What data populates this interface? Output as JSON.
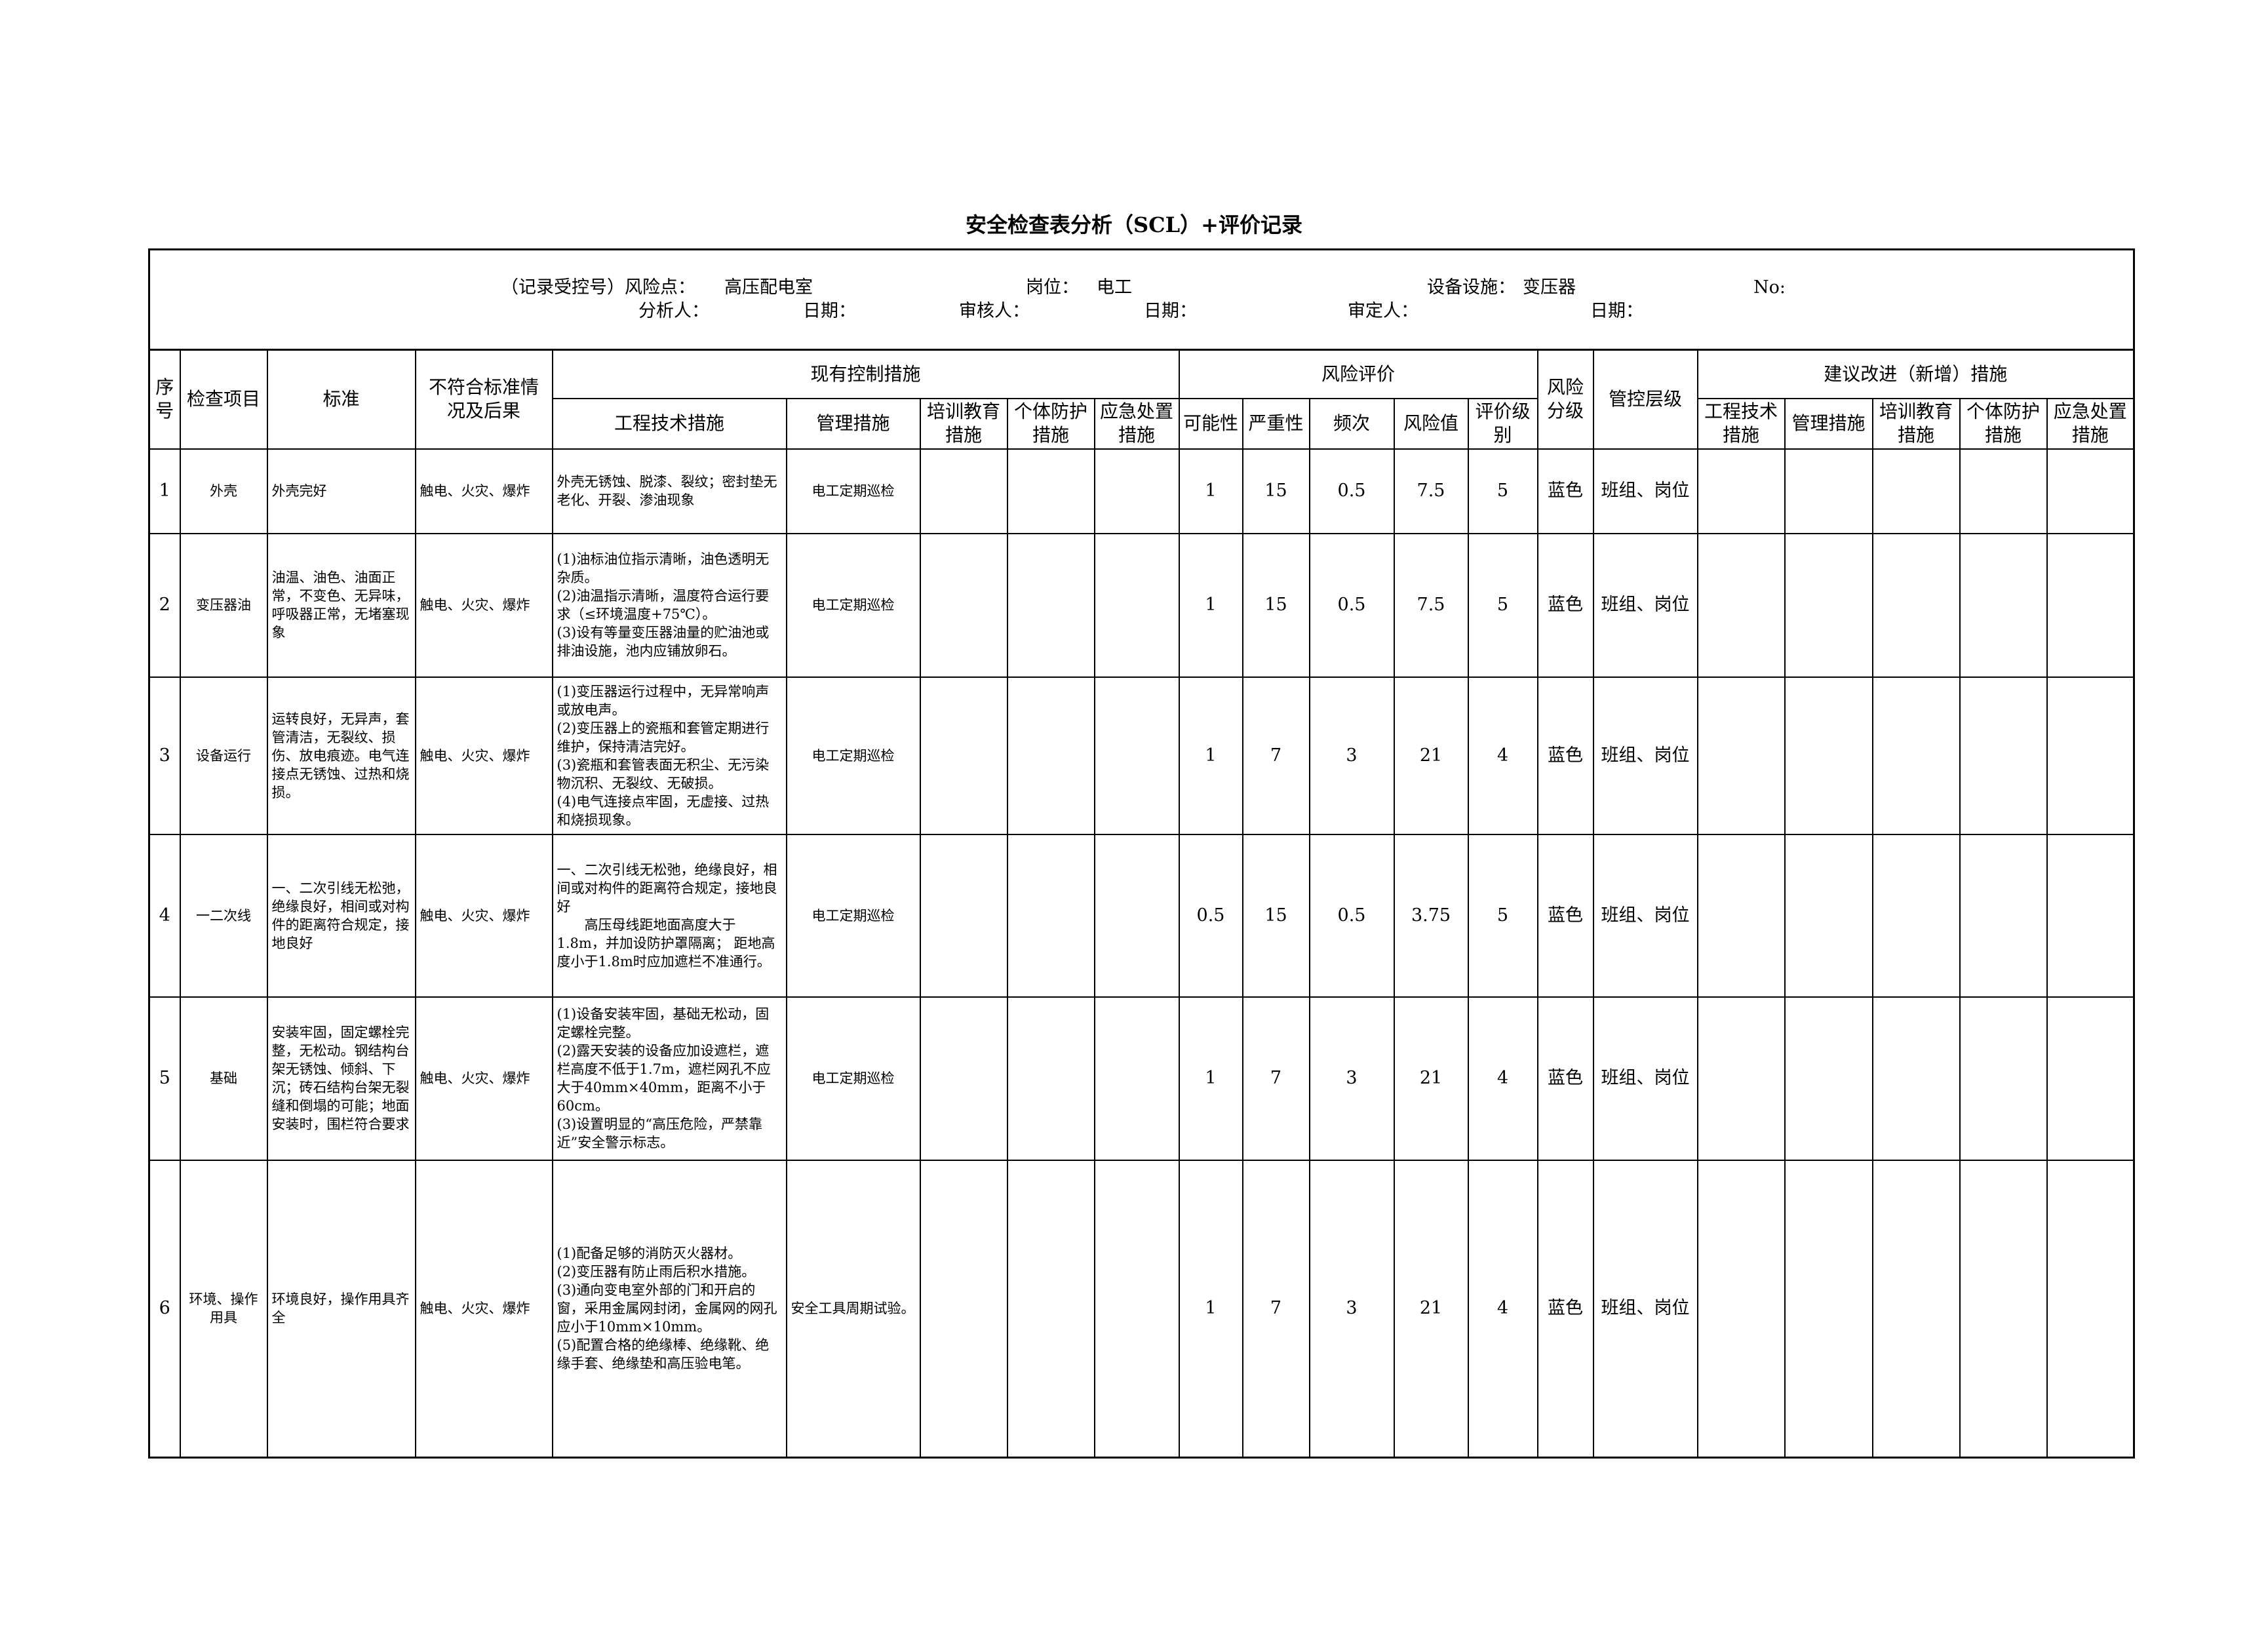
{
  "title": "安全检查表分析（SCL）+评价记录",
  "info": {
    "record_no": "（记录受控号）风险点：",
    "risk_point": "高压配电室",
    "post_label": "岗位：",
    "post": "电工",
    "facility_label": "设备设施：",
    "facility": "变压器",
    "no_label": "No:",
    "analyst_label": "分析人：",
    "date_label_1": "日期：",
    "reviewer_label": "审核人：",
    "date_label_2": "日期：",
    "approver_label": "审定人：",
    "date_label_3": "日期："
  },
  "headers": {
    "seq": "序号",
    "item": "检查项目",
    "standard": "标准",
    "nonconformity": "不符合标准情况及后果",
    "existing_controls": "现有控制措施",
    "risk_evaluation": "风险评价",
    "risk_grade": "风险分级",
    "control_level": "管控层级",
    "suggestions": "建议改进（新增）措施",
    "sub_existing": [
      "工程技术措施",
      "管理措施",
      "培训教育措施",
      "个体防护措施",
      "应急处置措施"
    ],
    "sub_risk": [
      "可能性",
      "严重性",
      "频次",
      "风险值",
      "评价级别"
    ],
    "sub_suggest": [
      "工程技术措施",
      "管理措施",
      "培训教育措施",
      "个体防护措施",
      "应急处置措施"
    ]
  },
  "rows": [
    {
      "seq": "1",
      "item": "外壳",
      "standard": "外壳完好",
      "consequence": "触电、火灾、爆炸",
      "engineering": "外壳无锈蚀、脱漆、裂纹；密封垫无老化、开裂、渗油现象",
      "management": "电工定期巡检",
      "training": "",
      "ppe": "",
      "emergency": "",
      "L": "1",
      "S": "15",
      "freq": "0.5",
      "R": "7.5",
      "level": "5",
      "grade": "蓝色",
      "control": "班组、岗位"
    },
    {
      "seq": "2",
      "item": "变压器油",
      "standard": "油温、油色、油面正常，不变色、无异味，呼吸器正常，无堵塞现象",
      "consequence": "触电、火灾、爆炸",
      "engineering": "(1)油标油位指示清晰，油色透明无杂质。\n(2)油温指示清晰，温度符合运行要求（≤环境温度+75℃）。\n(3)设有等量变压器油量的贮油池或排油设施，池内应铺放卵石。",
      "management": "电工定期巡检",
      "training": "",
      "ppe": "",
      "emergency": "",
      "L": "1",
      "S": "15",
      "freq": "0.5",
      "R": "7.5",
      "level": "5",
      "grade": "蓝色",
      "control": "班组、岗位"
    },
    {
      "seq": "3",
      "item": "设备运行",
      "standard": "运转良好，无异声，套管清洁，无裂纹、损伤、放电痕迹。电气连接点无锈蚀、过热和烧损。",
      "consequence": "触电、火灾、爆炸",
      "engineering": "(1)变压器运行过程中，无异常响声或放电声。\n(2)变压器上的瓷瓶和套管定期进行维护，保持清洁完好。\n(3)瓷瓶和套管表面无积尘、无污染物沉积、无裂纹、无破损。\n(4)电气连接点牢固，无虚接、过热和烧损现象。",
      "management": "电工定期巡检",
      "training": "",
      "ppe": "",
      "emergency": "",
      "L": "1",
      "S": "7",
      "freq": "3",
      "R": "21",
      "level": "4",
      "grade": "蓝色",
      "control": "班组、岗位"
    },
    {
      "seq": "4",
      "item": "一二次线",
      "standard": "一、二次引线无松弛，绝缘良好，相间或对构件的距离符合规定，接地良好",
      "consequence": "触电、火灾、爆炸",
      "engineering": "一、二次引线无松弛，绝缘良好，相间或对构件的距离符合规定，接地良好\n　　高压母线距地面高度大于1.8m，并加设防护罩隔离； 距地高度小于1.8m时应加遮栏不准通行。",
      "management": "电工定期巡检",
      "training": "",
      "ppe": "",
      "emergency": "",
      "L": "0.5",
      "S": "15",
      "freq": "0.5",
      "R": "3.75",
      "level": "5",
      "grade": "蓝色",
      "control": "班组、岗位"
    },
    {
      "seq": "5",
      "item": "基础",
      "standard": "安装牢固，固定螺栓完整，无松动。钢结构台架无锈蚀、倾斜、下沉；砖石结构台架无裂缝和倒塌的可能；地面安装时，围栏符合要求",
      "consequence": "触电、火灾、爆炸",
      "engineering": "(1)设备安装牢固，基础无松动，固定螺栓完整。\n(2)露天安装的设备应加设遮栏，遮栏高度不低于1.7m，遮栏网孔不应大于40mm×40mm，距离不小于60cm。\n(3)设置明显的“高压危险，严禁靠近”安全警示标志。",
      "management": "电工定期巡检",
      "training": "",
      "ppe": "",
      "emergency": "",
      "L": "1",
      "S": "7",
      "freq": "3",
      "R": "21",
      "level": "4",
      "grade": "蓝色",
      "control": "班组、岗位"
    },
    {
      "seq": "6",
      "item": "环境、操作用具",
      "standard": "环境良好，操作用具齐全",
      "consequence": "触电、火灾、爆炸",
      "engineering": "(1)配备足够的消防灭火器材。\n(2)变压器有防止雨后积水措施。\n(3)通向变电室外部的门和开启的窗，采用金属网封闭，金属网的网孔应小于10mm×10mm。\n(5)配置合格的绝缘棒、绝缘靴、绝缘手套、绝缘垫和高压验电笔。",
      "management": "安全工具周期试验。",
      "training": "",
      "ppe": "",
      "emergency": "",
      "L": "1",
      "S": "7",
      "freq": "3",
      "R": "21",
      "level": "4",
      "grade": "蓝色",
      "control": "班组、岗位"
    }
  ]
}
